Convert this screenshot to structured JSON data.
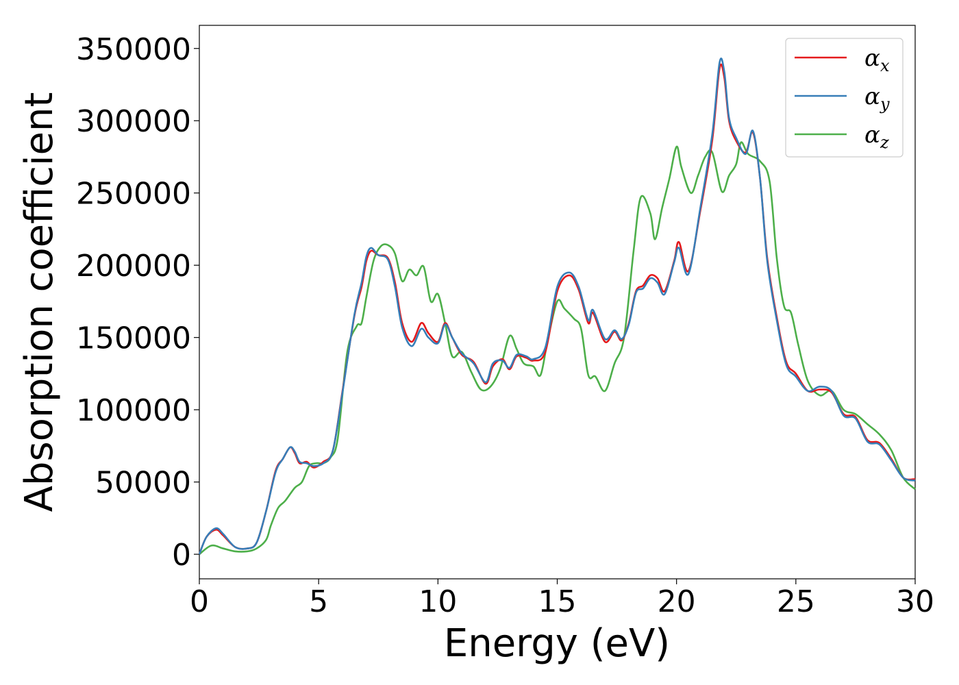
{
  "chart_data": {
    "type": "line",
    "title": "",
    "xlabel": "Energy (eV)",
    "ylabel": "Absorption coefficient",
    "xlim": [
      0,
      30
    ],
    "ylim": [
      -17000,
      366000
    ],
    "xticks": [
      0,
      5,
      10,
      15,
      20,
      25,
      30
    ],
    "xtick_labels": [
      "0",
      "5",
      "10",
      "15",
      "20",
      "25",
      "30"
    ],
    "yticks": [
      0,
      50000,
      100000,
      150000,
      200000,
      250000,
      300000,
      350000
    ],
    "ytick_labels": [
      "0",
      "50000",
      "100000",
      "150000",
      "200000",
      "250000",
      "300000",
      "350000"
    ],
    "grid": false,
    "legend_position": "top-right",
    "series": [
      {
        "name": "α_x",
        "label_base": "α",
        "label_sub": "x",
        "color": "#e41a1c",
        "x": [
          0,
          0.3,
          0.7,
          1.0,
          1.5,
          2.0,
          2.4,
          2.8,
          3.2,
          3.5,
          3.8,
          4.0,
          4.2,
          4.5,
          4.8,
          5.2,
          5.6,
          6.0,
          6.5,
          6.8,
          7.0,
          7.2,
          7.5,
          7.9,
          8.2,
          8.5,
          8.9,
          9.3,
          9.6,
          10.0,
          10.3,
          10.6,
          11.0,
          11.5,
          12.0,
          12.3,
          12.7,
          13.0,
          13.3,
          13.7,
          14.0,
          14.5,
          15.0,
          15.5,
          15.9,
          16.3,
          16.5,
          17.0,
          17.4,
          17.7,
          18.0,
          18.3,
          18.6,
          18.9,
          19.2,
          19.5,
          19.9,
          20.1,
          20.5,
          21.0,
          21.5,
          21.8,
          22.0,
          22.2,
          22.5,
          22.9,
          23.2,
          23.5,
          23.8,
          24.2,
          24.6,
          25.0,
          25.5,
          26.0,
          26.5,
          27.0,
          27.5,
          28.0,
          28.5,
          29.0,
          29.5,
          30.0
        ],
        "y": [
          0,
          12000,
          17000,
          13000,
          5000,
          4000,
          8000,
          30000,
          58000,
          66000,
          74000,
          70000,
          63000,
          64000,
          60000,
          64000,
          72000,
          113000,
          165000,
          185000,
          203000,
          210000,
          207000,
          205000,
          188000,
          160000,
          147000,
          160000,
          153000,
          147000,
          160000,
          150000,
          138000,
          133000,
          118000,
          130000,
          135000,
          128000,
          137000,
          136000,
          134000,
          140000,
          182000,
          193000,
          183000,
          160000,
          167000,
          147000,
          154000,
          148000,
          160000,
          182000,
          186000,
          193000,
          191000,
          182000,
          203000,
          216000,
          196000,
          238000,
          287000,
          336000,
          330000,
          300000,
          286000,
          278000,
          292000,
          260000,
          205000,
          164000,
          133000,
          125000,
          113000,
          114000,
          112000,
          97000,
          95000,
          79000,
          77000,
          66000,
          53000,
          52000
        ]
      },
      {
        "name": "α_y",
        "label_base": "α",
        "label_sub": "y",
        "color": "#377eb8",
        "x": [
          0,
          0.3,
          0.7,
          1.0,
          1.5,
          2.0,
          2.4,
          2.8,
          3.2,
          3.5,
          3.8,
          4.0,
          4.2,
          4.5,
          4.8,
          5.2,
          5.6,
          6.0,
          6.5,
          6.8,
          7.0,
          7.2,
          7.5,
          7.9,
          8.2,
          8.5,
          8.9,
          9.3,
          9.6,
          10.0,
          10.3,
          10.6,
          11.0,
          11.5,
          12.0,
          12.3,
          12.7,
          13.0,
          13.3,
          13.7,
          14.0,
          14.5,
          15.0,
          15.5,
          15.9,
          16.3,
          16.5,
          17.0,
          17.4,
          17.7,
          18.0,
          18.3,
          18.6,
          18.9,
          19.2,
          19.5,
          19.9,
          20.1,
          20.5,
          21.0,
          21.5,
          21.8,
          22.0,
          22.2,
          22.5,
          22.9,
          23.2,
          23.5,
          23.8,
          24.2,
          24.6,
          25.0,
          25.5,
          26.0,
          26.5,
          27.0,
          27.5,
          28.0,
          28.5,
          29.0,
          29.5,
          30.0
        ],
        "y": [
          0,
          12000,
          18000,
          14000,
          5000,
          4000,
          8000,
          30000,
          57000,
          66000,
          74000,
          71000,
          64000,
          63000,
          61000,
          63000,
          72000,
          112000,
          166000,
          188000,
          206000,
          212000,
          207000,
          204000,
          185000,
          157000,
          144000,
          156000,
          150000,
          146000,
          159000,
          150000,
          139000,
          132000,
          119000,
          132000,
          134000,
          129000,
          138000,
          137000,
          135000,
          143000,
          185000,
          195000,
          185000,
          162000,
          169000,
          149000,
          155000,
          149000,
          159000,
          181000,
          184000,
          191000,
          188000,
          180000,
          202000,
          212000,
          194000,
          240000,
          291000,
          340000,
          334000,
          302000,
          288000,
          277000,
          293000,
          260000,
          203000,
          162000,
          131000,
          123000,
          113000,
          116000,
          113000,
          96000,
          94000,
          78000,
          76000,
          65000,
          53000,
          51000
        ]
      },
      {
        "name": "α_z",
        "label_base": "α",
        "label_sub": "z",
        "color": "#4daf4a",
        "x": [
          0,
          0.5,
          1.0,
          1.5,
          2.0,
          2.4,
          2.8,
          3.0,
          3.3,
          3.6,
          4.0,
          4.3,
          4.6,
          4.9,
          5.2,
          5.5,
          5.8,
          6.2,
          6.6,
          6.8,
          7.0,
          7.3,
          7.6,
          7.9,
          8.2,
          8.5,
          8.8,
          9.1,
          9.4,
          9.7,
          10.0,
          10.3,
          10.6,
          11.0,
          11.4,
          11.8,
          12.2,
          12.6,
          13.0,
          13.3,
          13.6,
          14.0,
          14.3,
          14.6,
          15.0,
          15.3,
          15.7,
          16.0,
          16.3,
          16.6,
          17.0,
          17.4,
          17.8,
          18.2,
          18.5,
          18.9,
          19.1,
          19.4,
          19.7,
          20.0,
          20.2,
          20.6,
          20.9,
          21.2,
          21.5,
          21.9,
          22.2,
          22.5,
          22.7,
          23.0,
          23.5,
          23.9,
          24.2,
          24.5,
          24.8,
          25.1,
          25.5,
          26.0,
          26.5,
          27.0,
          27.5,
          28.0,
          28.5,
          29.0,
          29.5,
          30.0
        ],
        "y": [
          0,
          6000,
          4000,
          2000,
          2000,
          4000,
          10000,
          20000,
          32000,
          37000,
          46000,
          50000,
          61000,
          63000,
          63000,
          67000,
          80000,
          140000,
          158000,
          160000,
          178000,
          203000,
          213000,
          214000,
          208000,
          189000,
          197000,
          193000,
          199000,
          175000,
          180000,
          160000,
          137000,
          140000,
          126000,
          114000,
          116000,
          128000,
          151000,
          142000,
          132000,
          130000,
          124000,
          148000,
          175000,
          170000,
          163000,
          156000,
          124000,
          123000,
          113000,
          132000,
          150000,
          210000,
          247000,
          236000,
          218000,
          240000,
          260000,
          282000,
          268000,
          250000,
          262000,
          275000,
          278000,
          251000,
          262000,
          270000,
          285000,
          277000,
          272000,
          258000,
          205000,
          172000,
          167000,
          145000,
          120000,
          110000,
          113000,
          100000,
          97000,
          90000,
          83000,
          72000,
          53000,
          45000
        ]
      }
    ]
  }
}
